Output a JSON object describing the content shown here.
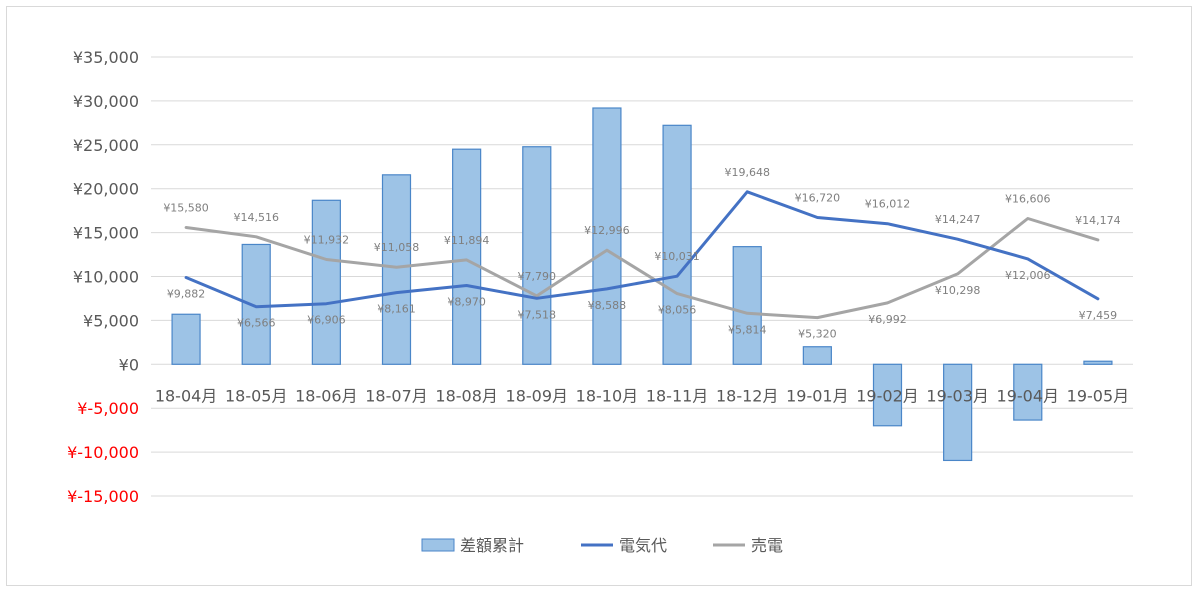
{
  "chart_data": {
    "type": "bar",
    "title": "",
    "xlabel": "",
    "ylabel": "",
    "ylim": [
      -15000,
      35000
    ],
    "yticks": [
      35000,
      30000,
      25000,
      20000,
      15000,
      10000,
      5000,
      0,
      -5000,
      -10000,
      -15000
    ],
    "ytick_labels": [
      "¥35,000",
      "¥30,000",
      "¥25,000",
      "¥20,000",
      "¥15,000",
      "¥10,000",
      "¥5,000",
      "¥0",
      "¥-5,000",
      "¥-10,000",
      "¥-15,000"
    ],
    "categories": [
      "18-04月",
      "18-05月",
      "18-06月",
      "18-07月",
      "18-08月",
      "18-09月",
      "18-10月",
      "18-11月",
      "18-12月",
      "19-01月",
      "19-02月",
      "19-03月",
      "19-04月",
      "19-05月"
    ],
    "grid": true,
    "legend_position": "bottom",
    "series": [
      {
        "name": "差額累計",
        "type": "bar",
        "color": "#9dc3e6",
        "edge_color": "#4a86c8",
        "values": [
          5700,
          13650,
          18680,
          21580,
          24500,
          24780,
          29190,
          27220,
          13400,
          2000,
          -7000,
          -10950,
          -6350,
          350
        ]
      },
      {
        "name": "電気代",
        "type": "line",
        "color": "#4472c4",
        "values": [
          9882,
          6566,
          6906,
          8161,
          8970,
          7518,
          8588,
          10031,
          19648,
          16720,
          16012,
          14247,
          12006,
          7459
        ],
        "labels": [
          "¥9,882",
          "¥6,566",
          "¥6,906",
          "¥8,161",
          "¥8,970",
          "¥7,518",
          "¥8,588",
          "¥10,031",
          "¥19,648",
          "¥16,720",
          "¥16,012",
          "¥14,247",
          "¥12,006",
          "¥7,459"
        ]
      },
      {
        "name": "売電",
        "type": "line",
        "color": "#a5a5a5",
        "values": [
          15580,
          14516,
          11932,
          11058,
          11894,
          7790,
          12996,
          8056,
          5814,
          5320,
          6992,
          10298,
          16606,
          14174
        ],
        "labels": [
          "¥15,580",
          "¥14,516",
          "¥11,932",
          "¥11,058",
          "¥11,894",
          "¥7,790",
          "¥12,996",
          "¥8,056",
          "¥5,814",
          "¥5,320",
          "¥6,992",
          "¥10,298",
          "¥16,606",
          "¥14,174"
        ]
      }
    ]
  }
}
